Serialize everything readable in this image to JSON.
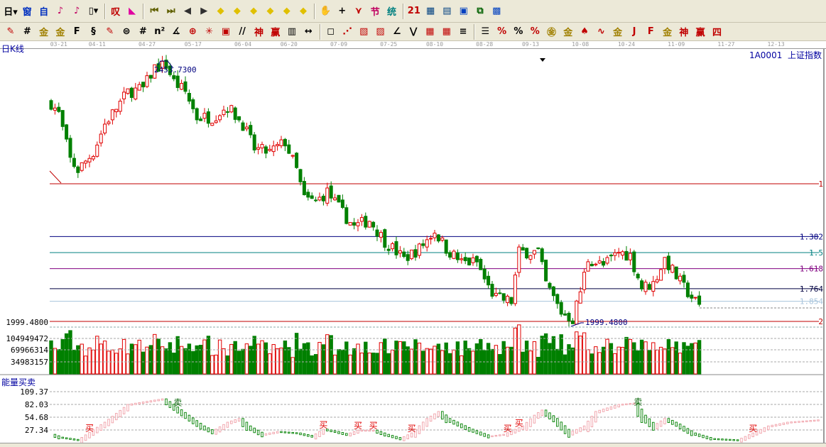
{
  "toolbar1": [
    {
      "name": "period-day-dropdown",
      "glyph": "日▾",
      "color": "#000"
    },
    {
      "name": "tech-analysis-icon",
      "glyph": "窗",
      "color": "#0030c0"
    },
    {
      "name": "self-select-icon",
      "glyph": "自",
      "color": "#0030c0"
    },
    {
      "name": "chart-3-icon",
      "glyph": "♪",
      "color": "#c00060"
    },
    {
      "name": "chart-9-icon",
      "glyph": "♪",
      "color": "#c00060"
    },
    {
      "name": "candle-type-dropdown",
      "glyph": "▯▾",
      "color": "#000"
    },
    {
      "name": "sep",
      "glyph": "",
      "color": ""
    },
    {
      "name": "indicator-icon",
      "glyph": "叹",
      "color": "#c00000"
    },
    {
      "name": "flag-icon",
      "glyph": "◣",
      "color": "#e000a0"
    },
    {
      "name": "sep",
      "glyph": "",
      "color": ""
    },
    {
      "name": "first-icon",
      "glyph": "⏮",
      "color": "#606000"
    },
    {
      "name": "last-icon",
      "glyph": "⏭",
      "color": "#606000"
    },
    {
      "name": "prev-icon",
      "glyph": "◀",
      "color": "#303030"
    },
    {
      "name": "next-icon",
      "glyph": "▶",
      "color": "#303030"
    },
    {
      "name": "move-left-icon",
      "glyph": "◆",
      "color": "#e0c000"
    },
    {
      "name": "move-right-icon",
      "glyph": "◆",
      "color": "#e0c000"
    },
    {
      "name": "zoom-in-h-icon",
      "glyph": "◆",
      "color": "#e0c000"
    },
    {
      "name": "zoom-out-h-icon",
      "glyph": "◆",
      "color": "#e0c000"
    },
    {
      "name": "zoom-in-icon",
      "glyph": "◆",
      "color": "#e0c000"
    },
    {
      "name": "zoom-out-icon",
      "glyph": "◆",
      "color": "#e0c000"
    },
    {
      "name": "sep",
      "glyph": "",
      "color": ""
    },
    {
      "name": "hand-icon",
      "glyph": "✋",
      "color": "#000"
    },
    {
      "name": "crosshair-icon",
      "glyph": "+",
      "color": "#000"
    },
    {
      "name": "line-tool-icon",
      "glyph": "⋎",
      "color": "#c00000"
    },
    {
      "name": "section-icon",
      "glyph": "节",
      "color": "#c00060"
    },
    {
      "name": "stats-icon",
      "glyph": "统",
      "color": "#008080"
    },
    {
      "name": "sep",
      "glyph": "",
      "color": ""
    },
    {
      "name": "calendar-icon",
      "glyph": "21",
      "color": "#c00000"
    },
    {
      "name": "calculator-icon",
      "glyph": "▦",
      "color": "#004080"
    },
    {
      "name": "notes-icon",
      "glyph": "▤",
      "color": "#004080"
    },
    {
      "name": "save-icon",
      "glyph": "▣",
      "color": "#0040c0"
    },
    {
      "name": "network-icon",
      "glyph": "⧉",
      "color": "#006000"
    },
    {
      "name": "computer-icon",
      "glyph": "▩",
      "color": "#0040c0"
    }
  ],
  "toolbar2": [
    {
      "name": "pen-icon",
      "glyph": "✎",
      "color": "#c00000"
    },
    {
      "name": "parallel-line-icon",
      "glyph": "#",
      "color": "#000"
    },
    {
      "name": "gold-line-icon",
      "glyph": "金",
      "color": "#a08000"
    },
    {
      "name": "gold-line-2-icon",
      "glyph": "金",
      "color": "#a08000"
    },
    {
      "name": "fib-line-icon",
      "glyph": "F",
      "color": "#000"
    },
    {
      "name": "spiral-icon",
      "glyph": "§",
      "color": "#000"
    },
    {
      "name": "pen-2-icon",
      "glyph": "✎",
      "color": "#c00000"
    },
    {
      "name": "circle-icon",
      "glyph": "⊜",
      "color": "#000"
    },
    {
      "name": "grid-lines-icon",
      "glyph": "#",
      "color": "#000"
    },
    {
      "name": "n2-icon",
      "glyph": "n²",
      "color": "#000"
    },
    {
      "name": "angle-icon",
      "glyph": "∡",
      "color": "#000"
    },
    {
      "name": "target-icon",
      "glyph": "⊕",
      "color": "#c00000"
    },
    {
      "name": "star-icon",
      "glyph": "✳",
      "color": "#c00000"
    },
    {
      "name": "square-spiral-icon",
      "glyph": "▣",
      "color": "#c00000"
    },
    {
      "name": "tick-lines-icon",
      "glyph": "//",
      "color": "#000"
    },
    {
      "name": "shen-icon",
      "glyph": "神",
      "color": "#c00000"
    },
    {
      "name": "ying-icon",
      "glyph": "赢",
      "color": "#c00000"
    },
    {
      "name": "ruler-icon",
      "glyph": "▥",
      "color": "#000"
    },
    {
      "name": "width-icon",
      "glyph": "↔",
      "color": "#000"
    },
    {
      "name": "sep",
      "glyph": "",
      "color": ""
    },
    {
      "name": "box-icon",
      "glyph": "◻",
      "color": "#000"
    },
    {
      "name": "fan-icon",
      "glyph": "⋰",
      "color": "#c00000"
    },
    {
      "name": "gann-box-icon",
      "glyph": "▧",
      "color": "#c00000"
    },
    {
      "name": "gann-fan-icon",
      "glyph": "▨",
      "color": "#c00000"
    },
    {
      "name": "angle-lines-icon",
      "glyph": "∠",
      "color": "#000"
    },
    {
      "name": "zigzag-icon",
      "glyph": "⋁",
      "color": "#000"
    },
    {
      "name": "grid-icon",
      "glyph": "▦",
      "color": "#c00000"
    },
    {
      "name": "grid-2-icon",
      "glyph": "▦",
      "color": "#c00000"
    },
    {
      "name": "slash-icon",
      "glyph": "≡",
      "color": "#000"
    },
    {
      "name": "sep",
      "glyph": "",
      "color": ""
    },
    {
      "name": "table-icon",
      "glyph": "☰",
      "color": "#000"
    },
    {
      "name": "percent-line-icon",
      "glyph": "%",
      "color": "#c00000"
    },
    {
      "name": "percent-icon",
      "glyph": "%",
      "color": "#000"
    },
    {
      "name": "percent-lines-icon",
      "glyph": "%",
      "color": "#c00000"
    },
    {
      "name": "gold-circle-icon",
      "glyph": "㊎",
      "color": "#a08000"
    },
    {
      "name": "gold-lines-icon",
      "glyph": "金",
      "color": "#a08000"
    },
    {
      "name": "bell-icon",
      "glyph": "♠",
      "color": "#c00000"
    },
    {
      "name": "wave-icon",
      "glyph": "∿",
      "color": "#c00000"
    },
    {
      "name": "gold-bar-icon",
      "glyph": "金",
      "color": "#a08000"
    },
    {
      "name": "j-angle-icon",
      "glyph": "J",
      "color": "#c00000"
    },
    {
      "name": "f-angle-icon",
      "glyph": "F",
      "color": "#c00000"
    },
    {
      "name": "gold-angle-icon",
      "glyph": "金",
      "color": "#a08000"
    },
    {
      "name": "shen-angle-icon",
      "glyph": "神",
      "color": "#c00000"
    },
    {
      "name": "ying-angle-icon",
      "glyph": "赢",
      "color": "#c00000"
    },
    {
      "name": "four-angle-icon",
      "glyph": "四",
      "color": "#c00000"
    }
  ],
  "chart": {
    "period_label": "日K线",
    "symbol": "1A0001",
    "name": "上证指数",
    "high_label": "2453.7300",
    "low_label": "1999.4800",
    "axis_low_label": "1999.4800",
    "volume_ticks": [
      "104949472",
      "69966314",
      "34983157"
    ],
    "indicator_title": "能量买卖",
    "indicator_ticks": [
      "109.37",
      "82.03",
      "54.68",
      "27.34"
    ],
    "buy_label": "买",
    "sell_label": "卖",
    "colors": {
      "up": "#e00000",
      "down": "#008000",
      "label": "#0000a0",
      "buy": "#e00000",
      "sell": "#006000"
    }
  },
  "chart_data": {
    "type": "candlestick",
    "x_dates": [
      {
        "i": 2,
        "d": "03-21"
      },
      {
        "i": 12,
        "d": "04-11"
      },
      {
        "i": 25,
        "d": "04-27"
      },
      {
        "i": 37,
        "d": "05-17"
      },
      {
        "i": 50,
        "d": "06-04"
      },
      {
        "i": 62,
        "d": "06-20"
      },
      {
        "i": 75,
        "d": "07-09"
      },
      {
        "i": 88,
        "d": "07-25"
      },
      {
        "i": 100,
        "d": "08-10"
      },
      {
        "i": 113,
        "d": "08-28"
      },
      {
        "i": 125,
        "d": "09-13"
      },
      {
        "i": 138,
        "d": "10-08"
      },
      {
        "i": 150,
        "d": "10-24"
      },
      {
        "i": 163,
        "d": "11-09"
      },
      {
        "i": 176,
        "d": "11-27"
      },
      {
        "i": 189,
        "d": "12-13"
      }
    ],
    "price_ylim": [
      1999.48,
      2453.73
    ],
    "close_keypoints": {
      "i": [
        0,
        2,
        5,
        7,
        11,
        14,
        20,
        24,
        27,
        30,
        32,
        35,
        38,
        42,
        46,
        50,
        53,
        57,
        61,
        64,
        66,
        69,
        72,
        76,
        79,
        83,
        87,
        92,
        96,
        100,
        103,
        107,
        111,
        114,
        116,
        120,
        122,
        127,
        129,
        133,
        136,
        138,
        140,
        144,
        148,
        151,
        154,
        157,
        160,
        163,
        165,
        169
      ],
      "close": [
        2383,
        2364,
        2284,
        2266,
        2297,
        2346,
        2402,
        2408,
        2445,
        2449,
        2420,
        2402,
        2358,
        2358,
        2377,
        2346,
        2303,
        2297,
        2315,
        2266,
        2216,
        2210,
        2228,
        2191,
        2167,
        2179,
        2142,
        2111,
        2129,
        2160,
        2129,
        2105,
        2105,
        2061,
        2043,
        2037,
        2123,
        2123,
        2068,
        2018,
        2006,
        2055,
        2111,
        2099,
        2123,
        2117,
        2061,
        2068,
        2111,
        2080,
        2061,
        2028
      ]
    },
    "fib_levels": [
      {
        "label": "1",
        "price": 2242,
        "color": "#c00000"
      },
      {
        "label": "1.382",
        "price": 2150,
        "color": "#000080"
      },
      {
        "label": "1.5",
        "price": 2122,
        "color": "#008080"
      },
      {
        "label": "1.618",
        "price": 2094,
        "color": "#800080"
      },
      {
        "label": "1.764",
        "price": 2059,
        "color": "#000040"
      },
      {
        "label": "1.854",
        "price": 2037,
        "color": "#a8c4dc"
      },
      {
        "label": "2",
        "price": 2002,
        "color": "#c00000"
      }
    ],
    "volume_ylim": [
      0,
      150000000
    ],
    "indicator": {
      "ylim": [
        0,
        120
      ],
      "i": [
        0,
        2,
        7,
        14,
        20,
        29,
        35,
        39,
        42,
        46,
        49,
        51,
        55,
        59,
        64,
        68,
        71,
        74,
        77,
        80,
        84,
        87,
        91,
        94,
        98,
        101,
        103,
        109,
        114,
        118,
        123,
        126,
        128,
        131,
        135,
        139,
        142,
        148,
        152,
        154,
        157,
        160,
        163,
        167,
        172,
        179,
        183,
        187,
        192,
        200
      ],
      "v": [
        18,
        12,
        6,
        44,
        82,
        94,
        59,
        36,
        24,
        44,
        52,
        36,
        18,
        24,
        21,
        14,
        29,
        24,
        18,
        27,
        27,
        18,
        9,
        21,
        52,
        67,
        52,
        29,
        14,
        18,
        36,
        59,
        70,
        52,
        21,
        36,
        67,
        82,
        85,
        59,
        36,
        52,
        40,
        21,
        9,
        6,
        21,
        36,
        44,
        49
      ],
      "buy_at": [
        10,
        71,
        80,
        84,
        94,
        119,
        122,
        183
      ],
      "sell_at": [
        33,
        153
      ]
    }
  }
}
